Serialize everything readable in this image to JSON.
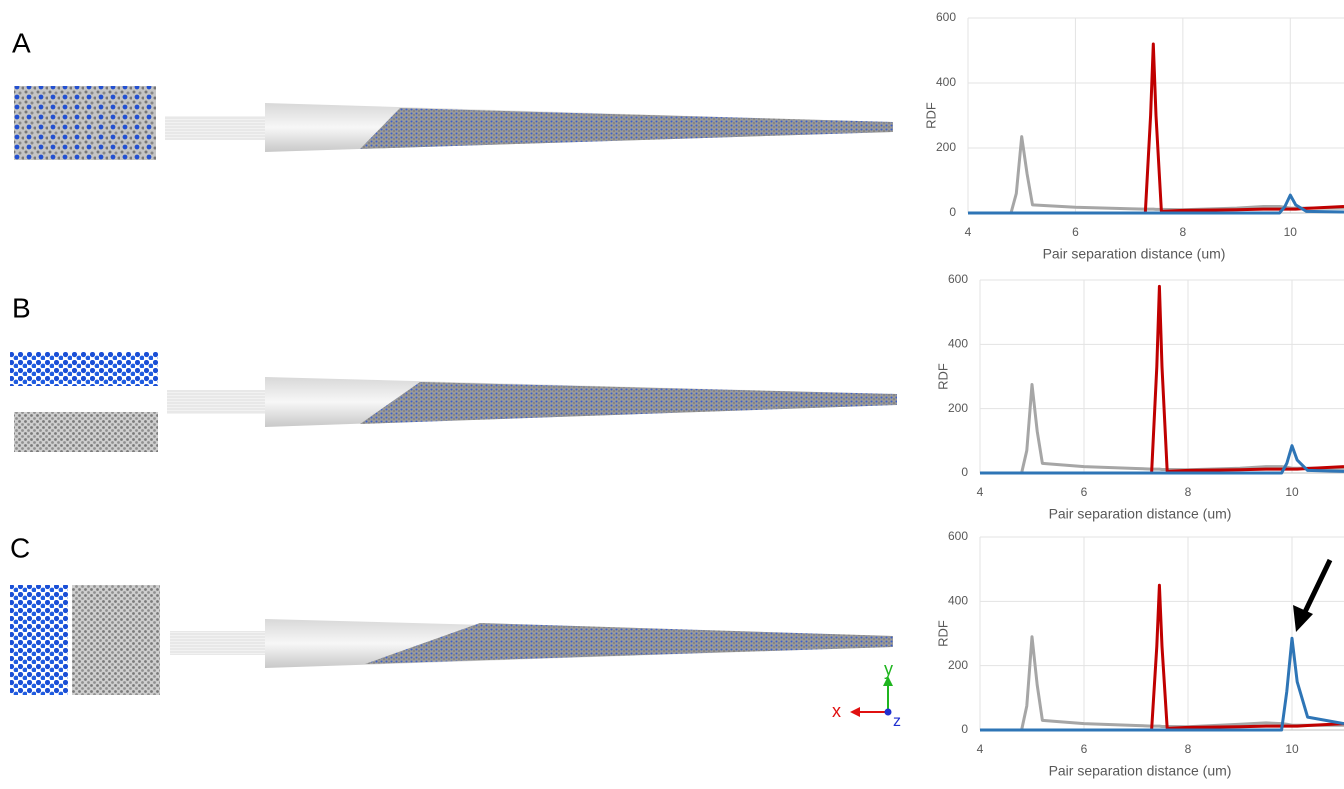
{
  "panels": [
    "A",
    "B",
    "C"
  ],
  "axes_triad": {
    "x": "x",
    "y": "y",
    "z": "z"
  },
  "chart_data": [
    {
      "type": "line",
      "y_label": "RDF",
      "x_label": "Pair separation distance (um)",
      "xlim": [
        4,
        11
      ],
      "ylim": [
        0,
        600
      ],
      "xticks": [
        4,
        6,
        8,
        10
      ],
      "yticks": [
        0,
        200,
        400,
        600
      ],
      "grid": true,
      "x": [
        4,
        4.8,
        4.9,
        5.0,
        5.1,
        5.2,
        6,
        7,
        7.3,
        7.4,
        7.45,
        7.5,
        7.6,
        8,
        9,
        9.5,
        9.8,
        9.9,
        10.0,
        10.1,
        10.3,
        11
      ],
      "series": [
        {
          "color": "#a6a6a6",
          "values": [
            0,
            0,
            60,
            235,
            120,
            25,
            18,
            13,
            12,
            12,
            12,
            11,
            11,
            10,
            15,
            20,
            20,
            18,
            15,
            15,
            15,
            15
          ]
        },
        {
          "color": "#c00000",
          "values": [
            0,
            0,
            0,
            0,
            0,
            0,
            0,
            0,
            0,
            300,
            520,
            300,
            5,
            8,
            10,
            12,
            12,
            12,
            12,
            12,
            14,
            20
          ]
        },
        {
          "color": "#2e75b6",
          "values": [
            0,
            0,
            0,
            0,
            0,
            0,
            0,
            0,
            0,
            0,
            0,
            0,
            0,
            0,
            0,
            0,
            0,
            20,
            55,
            25,
            5,
            3
          ]
        }
      ]
    },
    {
      "type": "line",
      "y_label": "RDF",
      "x_label": "Pair separation distance (um)",
      "xlim": [
        4,
        11
      ],
      "ylim": [
        0,
        600
      ],
      "xticks": [
        4,
        6,
        8,
        10
      ],
      "yticks": [
        0,
        200,
        400,
        600
      ],
      "grid": true,
      "x": [
        4,
        4.8,
        4.9,
        5.0,
        5.1,
        5.2,
        6,
        7,
        7.3,
        7.4,
        7.45,
        7.5,
        7.6,
        8,
        9,
        9.5,
        9.8,
        9.9,
        10.0,
        10.1,
        10.3,
        11
      ],
      "series": [
        {
          "color": "#a6a6a6",
          "values": [
            0,
            0,
            70,
            275,
            130,
            30,
            20,
            14,
            12,
            12,
            12,
            11,
            11,
            10,
            15,
            20,
            20,
            18,
            15,
            15,
            15,
            15
          ]
        },
        {
          "color": "#c00000",
          "values": [
            0,
            0,
            0,
            0,
            0,
            0,
            0,
            0,
            0,
            330,
            580,
            330,
            5,
            8,
            10,
            12,
            12,
            12,
            12,
            12,
            14,
            20
          ]
        },
        {
          "color": "#2e75b6",
          "values": [
            0,
            0,
            0,
            0,
            0,
            0,
            0,
            0,
            0,
            0,
            0,
            0,
            0,
            0,
            0,
            0,
            0,
            30,
            85,
            40,
            8,
            5
          ]
        }
      ]
    },
    {
      "type": "line",
      "y_label": "RDF",
      "x_label": "Pair separation distance (um)",
      "xlim": [
        4,
        11
      ],
      "ylim": [
        0,
        600
      ],
      "xticks": [
        4,
        6,
        8,
        10
      ],
      "yticks": [
        0,
        200,
        400,
        600
      ],
      "grid": true,
      "x": [
        4,
        4.8,
        4.9,
        5.0,
        5.1,
        5.2,
        6,
        7,
        7.3,
        7.4,
        7.45,
        7.5,
        7.6,
        8,
        9,
        9.5,
        9.8,
        9.9,
        10.0,
        10.1,
        10.3,
        11
      ],
      "series": [
        {
          "color": "#a6a6a6",
          "values": [
            0,
            0,
            75,
            290,
            140,
            30,
            20,
            14,
            12,
            12,
            12,
            11,
            11,
            10,
            18,
            22,
            20,
            18,
            15,
            15,
            15,
            15
          ]
        },
        {
          "color": "#c00000",
          "values": [
            0,
            0,
            0,
            0,
            0,
            0,
            0,
            0,
            0,
            260,
            450,
            260,
            5,
            8,
            10,
            12,
            12,
            12,
            12,
            12,
            14,
            20
          ]
        },
        {
          "color": "#2e75b6",
          "values": [
            0,
            0,
            0,
            0,
            0,
            0,
            0,
            0,
            0,
            0,
            0,
            0,
            0,
            0,
            0,
            0,
            0,
            120,
            285,
            150,
            40,
            20
          ]
        }
      ]
    }
  ]
}
